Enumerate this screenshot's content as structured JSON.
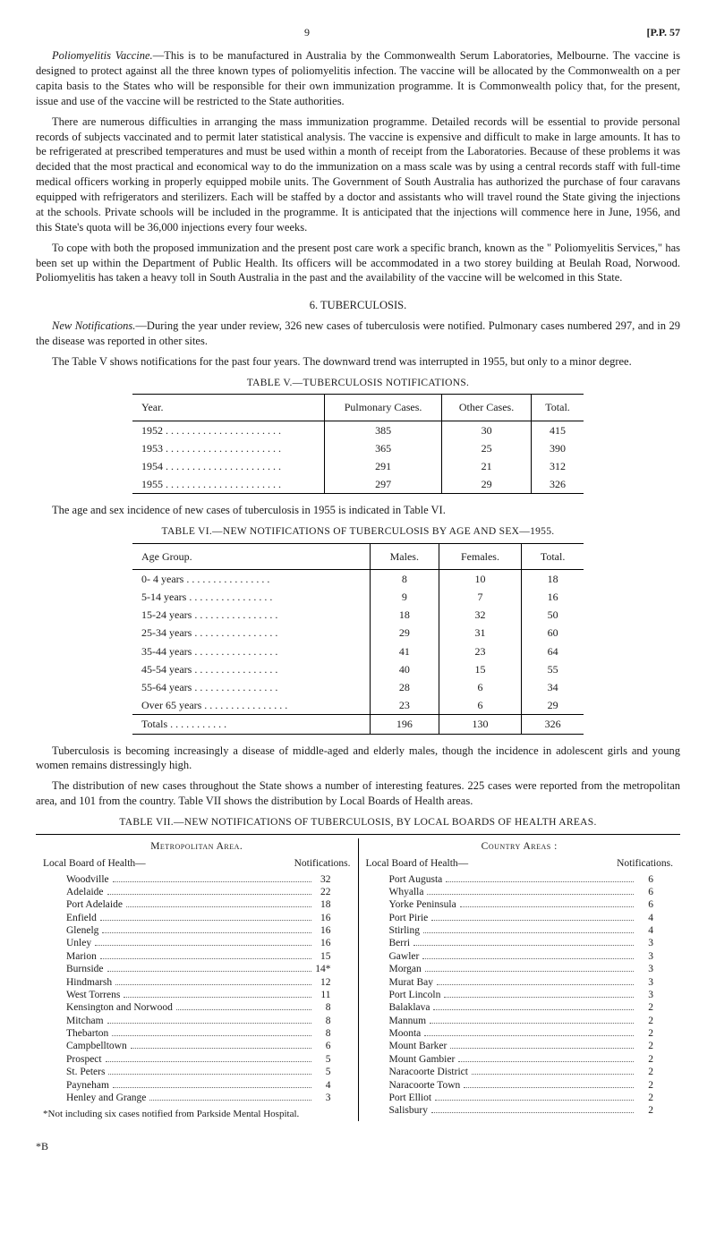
{
  "page_header": {
    "page_number": "9",
    "pp_ref": "[P.P. 57"
  },
  "polio": {
    "title": "Poliomyelitis Vaccine.",
    "para1": "—This is to be manufactured in Australia by the Commonwealth Serum Laboratories, Melbourne. The vaccine is designed to protect against all the three known types of poliomyelitis infection. The vaccine will be allocated by the Commonwealth on a per capita basis to the States who will be responsible for their own immunization programme. It is Commonwealth policy that, for the present, issue and use of the vaccine will be restricted to the State authorities.",
    "para2": "There are numerous difficulties in arranging the mass immunization programme. Detailed records will be essential to provide personal records of subjects vaccinated and to permit later statistical analysis. The vaccine is expensive and difficult to make in large amounts. It has to be refrigerated at prescribed temperatures and must be used within a month of receipt from the Laboratories. Because of these problems it was decided that the most practical and economical way to do the immunization on a mass scale was by using a central records staff with full-time medical officers working in properly equipped mobile units. The Government of South Australia has authorized the purchase of four caravans equipped with refrigerators and sterilizers. Each will be staffed by a doctor and assistants who will travel round the State giving the injections at the schools. Private schools will be included in the programme. It is anticipated that the injections will commence here in June, 1956, and this State's quota will be 36,000 injections every four weeks.",
    "para3": "To cope with both the proposed immunization and the present post care work a specific branch, known as the \" Poliomyelitis Services,\" has been set up within the Department of Public Health. Its officers will be accommodated in a two storey building at Beulah Road, Norwood. Poliomyelitis has taken a heavy toll in South Australia in the past and the availability of the vaccine will be welcomed in this State."
  },
  "tuberculosis": {
    "heading": "6. TUBERCULOSIS.",
    "notif_title": "New Notifications.",
    "notif_para": "—During the year under review, 326 new cases of tuberculosis were notified. Pulmonary cases numbered 297, and in 29 the disease was reported in other sites.",
    "table_intro": "The Table V shows notifications for the past four years. The downward trend was interrupted in 1955, but only to a minor degree."
  },
  "tableV": {
    "caption": "TABLE V.—TUBERCULOSIS NOTIFICATIONS.",
    "columns": [
      "Year.",
      "Pulmonary Cases.",
      "Other Cases.",
      "Total."
    ],
    "rows": [
      [
        "1952",
        "385",
        "30",
        "415"
      ],
      [
        "1953",
        "365",
        "25",
        "390"
      ],
      [
        "1954",
        "291",
        "21",
        "312"
      ],
      [
        "1955",
        "297",
        "29",
        "326"
      ]
    ]
  },
  "age_intro": "The age and sex incidence of new cases of tuberculosis in 1955 is indicated in Table VI.",
  "tableVI": {
    "caption": "TABLE VI.—NEW NOTIFICATIONS OF TUBERCULOSIS BY AGE AND SEX—1955.",
    "columns": [
      "Age Group.",
      "Males.",
      "Females.",
      "Total."
    ],
    "rows": [
      [
        "0- 4 years",
        "8",
        "10",
        "18"
      ],
      [
        "5-14 years",
        "9",
        "7",
        "16"
      ],
      [
        "15-24 years",
        "18",
        "32",
        "50"
      ],
      [
        "25-34 years",
        "29",
        "31",
        "60"
      ],
      [
        "35-44 years",
        "41",
        "23",
        "64"
      ],
      [
        "45-54 years",
        "40",
        "15",
        "55"
      ],
      [
        "55-64 years",
        "28",
        "6",
        "34"
      ],
      [
        "Over 65 years",
        "23",
        "6",
        "29"
      ]
    ],
    "totals": [
      "Totals",
      "196",
      "130",
      "326"
    ]
  },
  "analysis": {
    "para1": "Tuberculosis is becoming increasingly a disease of middle-aged and elderly males, though the incidence in adolescent girls and young women remains distressingly high.",
    "para2": "The distribution of new cases throughout the State shows a number of interesting features. 225 cases were reported from the metropolitan area, and 101 from the country. Table VII shows the distribution by Local Boards of Health areas."
  },
  "tableVII": {
    "caption": "TABLE VII.—NEW NOTIFICATIONS OF TUBERCULOSIS, BY LOCAL BOARDS OF HEALTH AREAS.",
    "metro_head": "Metropolitan Area.",
    "country_head": "Country Areas :",
    "col_head_left": "Local Board of Health—",
    "col_head_right": "Notifications.",
    "metro_rows": [
      [
        "Woodville",
        "32"
      ],
      [
        "Adelaide",
        "22"
      ],
      [
        "Port Adelaide",
        "18"
      ],
      [
        "Enfield",
        "16"
      ],
      [
        "Glenelg",
        "16"
      ],
      [
        "Unley",
        "16"
      ],
      [
        "Marion",
        "15"
      ],
      [
        "Burnside",
        "14*"
      ],
      [
        "Hindmarsh",
        "12"
      ],
      [
        "West Torrens",
        "11"
      ],
      [
        "Kensington and Norwood",
        "8"
      ],
      [
        "Mitcham",
        "8"
      ],
      [
        "Thebarton",
        "8"
      ],
      [
        "Campbelltown",
        "6"
      ],
      [
        "Prospect",
        "5"
      ],
      [
        "St. Peters",
        "5"
      ],
      [
        "Payneham",
        "4"
      ],
      [
        "Henley and Grange",
        "3"
      ]
    ],
    "metro_footnote": "*Not including six cases notified from Parkside Mental Hospital.",
    "country_rows": [
      [
        "Port Augusta",
        "6"
      ],
      [
        "Whyalla",
        "6"
      ],
      [
        "Yorke Peninsula",
        "6"
      ],
      [
        "Port Pirie",
        "4"
      ],
      [
        "Stirling",
        "4"
      ],
      [
        "Berri",
        "3"
      ],
      [
        "Gawler",
        "3"
      ],
      [
        "Morgan",
        "3"
      ],
      [
        "Murat Bay",
        "3"
      ],
      [
        "Port Lincoln",
        "3"
      ],
      [
        "Balaklava",
        "2"
      ],
      [
        "Mannum",
        "2"
      ],
      [
        "Moonta",
        "2"
      ],
      [
        "Mount Barker",
        "2"
      ],
      [
        "Mount Gambier",
        "2"
      ],
      [
        "Naracoorte District",
        "2"
      ],
      [
        "Naracoorte Town",
        "2"
      ],
      [
        "Port Elliot",
        "2"
      ],
      [
        "Salisbury",
        "2"
      ]
    ]
  },
  "footer_mark": "*B"
}
